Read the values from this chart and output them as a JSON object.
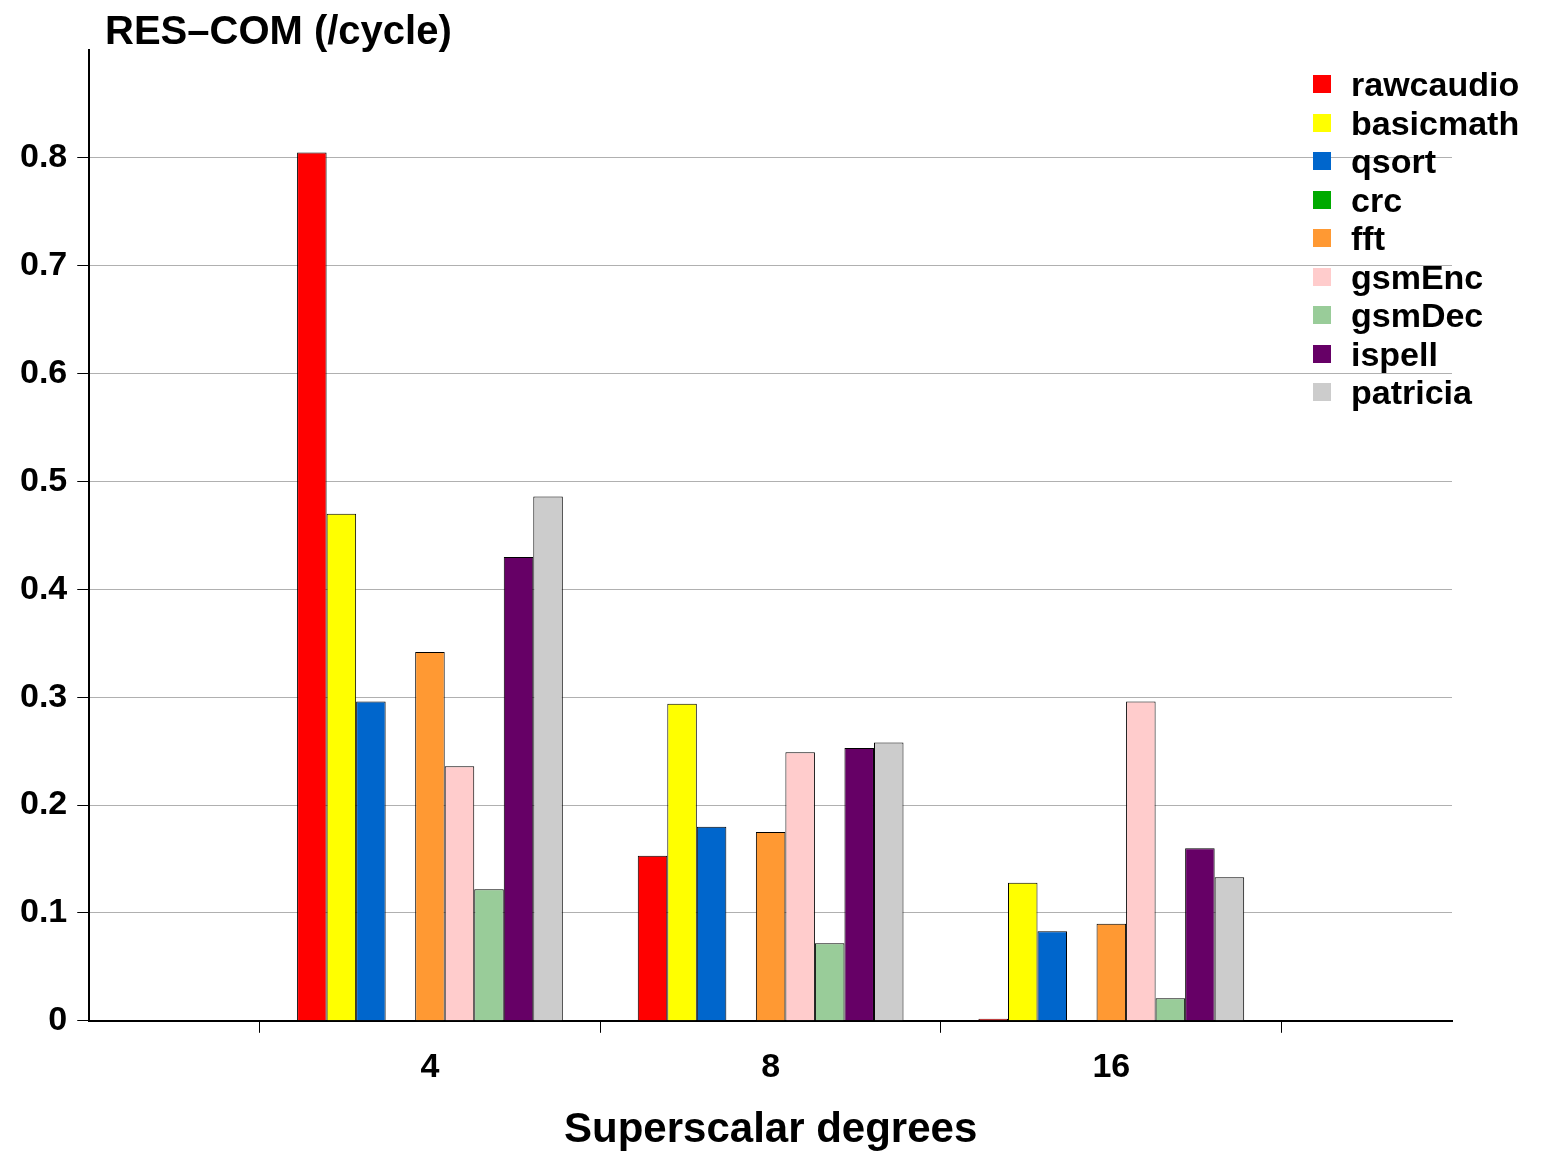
{
  "chart_data": {
    "type": "bar",
    "title": "RES–COM (/cycle)",
    "xlabel": "Superscalar degrees",
    "categories": [
      null,
      "4",
      "8",
      "16",
      null
    ],
    "series": [
      {
        "name": "rawcaudio",
        "color": "#ff0000",
        "values": [
          null,
          0.805,
          0.153,
          0.002,
          null
        ]
      },
      {
        "name": "basicmath",
        "color": "#ffff00",
        "values": [
          null,
          0.47,
          0.294,
          0.128,
          null
        ]
      },
      {
        "name": "qsort",
        "color": "#0066cc",
        "values": [
          null,
          0.296,
          0.18,
          0.083,
          null
        ]
      },
      {
        "name": "crc",
        "color": "#00aa00",
        "values": [
          null,
          0,
          0,
          0,
          null
        ]
      },
      {
        "name": "fft",
        "color": "#ff9933",
        "values": [
          null,
          0.342,
          0.175,
          0.09,
          null
        ]
      },
      {
        "name": "gsmEnc",
        "color": "#ffcccc",
        "values": [
          null,
          0.236,
          0.249,
          0.296,
          null
        ]
      },
      {
        "name": "gsmDec",
        "color": "#99cc99",
        "values": [
          null,
          0.122,
          0.072,
          0.021,
          null
        ]
      },
      {
        "name": "ispell",
        "color": "#660066",
        "values": [
          null,
          0.43,
          0.253,
          0.16,
          null
        ]
      },
      {
        "name": "patricia",
        "color": "#cccccc",
        "values": [
          null,
          0.486,
          0.258,
          0.133,
          null
        ]
      }
    ],
    "ylim": [
      0,
      0.9
    ],
    "yticks": [
      0,
      0.1,
      0.2,
      0.3,
      0.4,
      0.5,
      0.6,
      0.7,
      0.8
    ],
    "grid": "y",
    "legend": "top right"
  }
}
